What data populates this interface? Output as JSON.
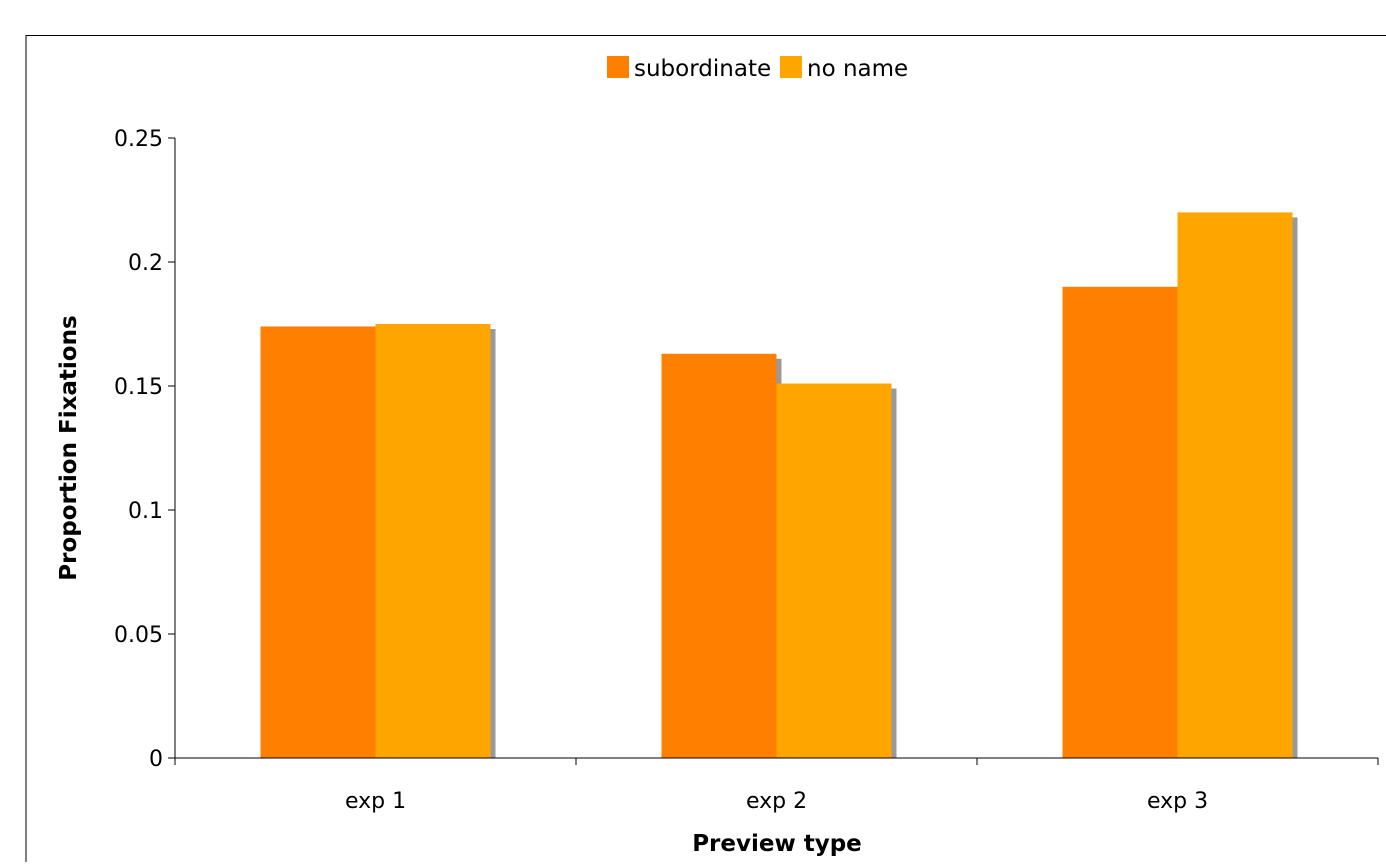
{
  "chart_data": {
    "type": "bar",
    "categories": [
      "exp 1",
      "exp 2",
      "exp 3"
    ],
    "series": [
      {
        "name": "subordinate",
        "values": [
          0.174,
          0.163,
          0.19
        ],
        "color": "#FF7F00"
      },
      {
        "name": "no name",
        "values": [
          0.175,
          0.151,
          0.22
        ],
        "color": "#FFA500"
      }
    ],
    "title": "",
    "xlabel": "Preview type",
    "ylabel": "Proportion Fixations",
    "ylim": [
      0,
      0.25
    ],
    "yticks": [
      "0",
      "0.05",
      "0.1",
      "0.15",
      "0.2",
      "0.25"
    ],
    "legend_position": "top",
    "grid": false,
    "colors": {
      "shadow": "#999999",
      "frame": "#000000",
      "axis": "#000000"
    }
  }
}
